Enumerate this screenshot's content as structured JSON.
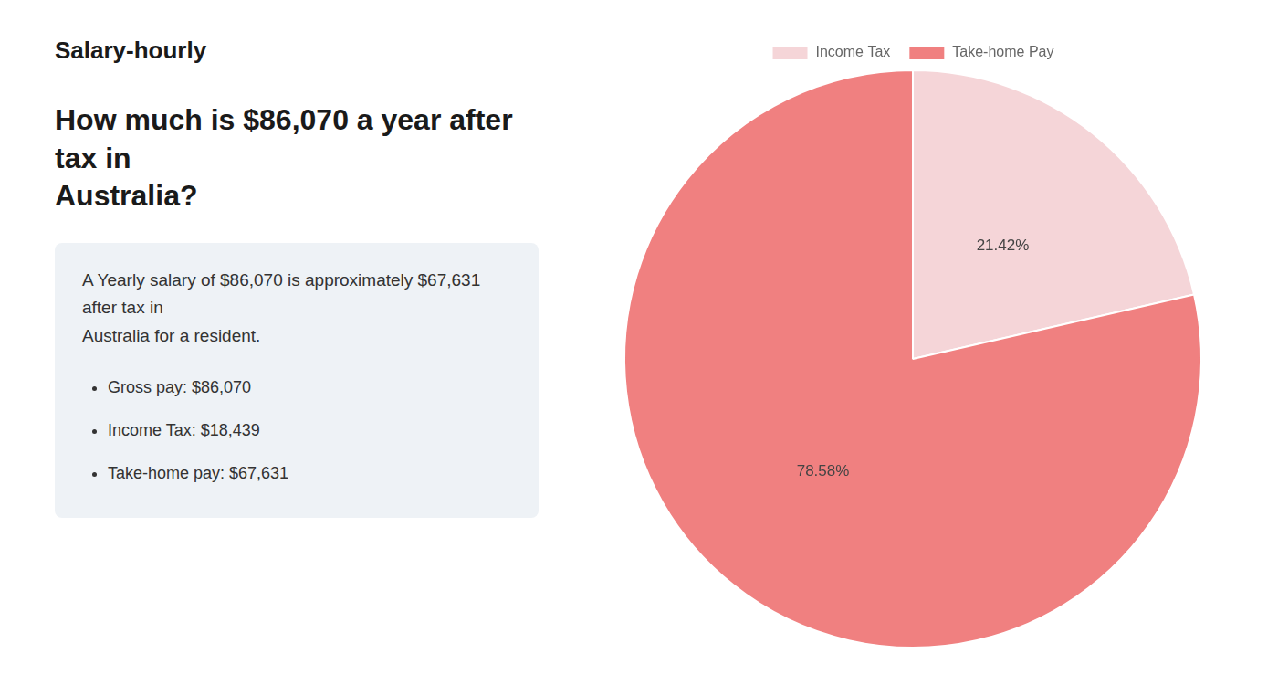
{
  "chart_data": {
    "type": "pie",
    "title": [
      "How much is $86,070 a year after tax in",
      "Australia?"
    ],
    "annotations": [
      "Salary-hourly",
      "A Yearly salary of $86,070 is approximately $67,631 after tax in",
      "Australia for a resident.",
      "Gross pay: $86,070",
      "Income Tax: $18,439",
      "Take-home pay: $67,631"
    ],
    "categories": [
      "Income Tax",
      "Take-home Pay"
    ],
    "values": [
      21.42,
      78.58
    ],
    "value_labels": [
      "21.42%",
      "78.58%"
    ],
    "colors": [
      "#f5d5d8",
      "#f08080"
    ],
    "data_labels": true,
    "legend": "top"
  }
}
